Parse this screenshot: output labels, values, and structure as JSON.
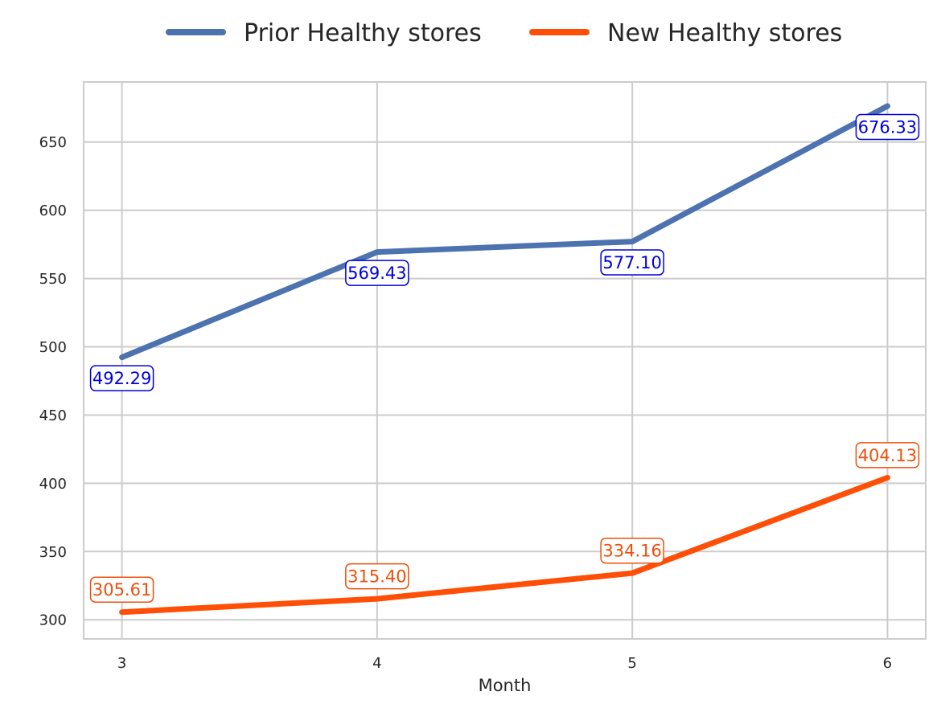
{
  "chart_data": {
    "type": "line",
    "xlabel": "Month",
    "ylabel": "",
    "x": [
      3,
      4,
      5,
      6
    ],
    "xlim": [
      2.85,
      6.15
    ],
    "ylim": [
      286,
      694
    ],
    "yticks": [
      300,
      350,
      400,
      450,
      500,
      550,
      600,
      650
    ],
    "grid": true,
    "legend_position": "top-center",
    "series": [
      {
        "name": "Prior Healthy stores",
        "values": [
          492.29,
          569.43,
          577.1,
          676.33
        ],
        "labels": [
          "492.29",
          "569.43",
          "577.10",
          "676.33"
        ],
        "color": "#4c72b0",
        "label_color": "#0000dd"
      },
      {
        "name": "New Healthy stores",
        "values": [
          305.61,
          315.4,
          334.16,
          404.13
        ],
        "labels": [
          "305.61",
          "315.40",
          "334.16",
          "404.13"
        ],
        "color": "#ff4f07",
        "label_color": "#ee4f0a"
      }
    ]
  }
}
